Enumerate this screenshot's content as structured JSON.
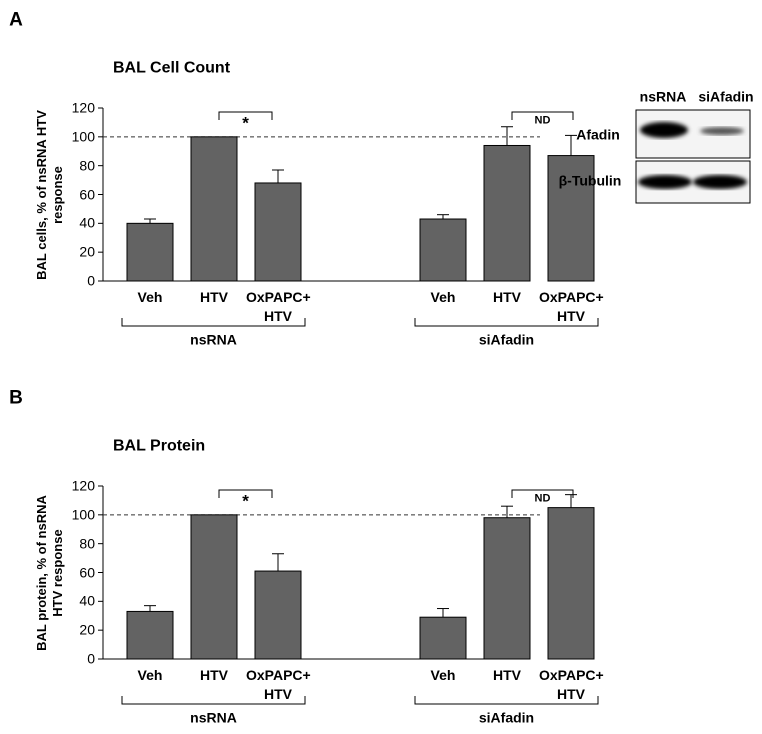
{
  "chart_data": [
    {
      "type": "bar",
      "panel": "A",
      "title": "BAL  Cell Count",
      "y_label": "BAL cells, % of nsRNA HTV response",
      "categories": [
        "Veh",
        "HTV",
        "OxPAPC+ HTV",
        "Veh",
        "HTV",
        "OxPAPC+ HTV"
      ],
      "groups": [
        "nsRNA",
        "siAfadin"
      ],
      "values": [
        40,
        100,
        68,
        43,
        94,
        87
      ],
      "errors": [
        3,
        0,
        9,
        3,
        13,
        14
      ],
      "color": "#636363",
      "ylim": [
        0,
        120
      ],
      "yticks": [
        0,
        20,
        40,
        60,
        80,
        100,
        120
      ],
      "reference_line": 100,
      "annotations": [
        "*",
        "ND"
      ]
    },
    {
      "type": "bar",
      "panel": "B",
      "title": "BAL  Protein",
      "y_label": "BAL protein, % of nsRNA HTV response",
      "categories": [
        "Veh",
        "HTV",
        "OxPAPC+ HTV",
        "Veh",
        "HTV",
        "OxPAPC+ HTV"
      ],
      "groups": [
        "nsRNA",
        "siAfadin"
      ],
      "values": [
        33,
        100,
        61,
        29,
        98,
        105
      ],
      "errors": [
        4,
        0,
        12,
        6,
        8,
        9
      ],
      "color": "#636363",
      "ylim": [
        0,
        120
      ],
      "yticks": [
        0,
        20,
        40,
        60,
        80,
        100,
        120
      ],
      "reference_line": 100,
      "annotations": [
        "*",
        "ND"
      ]
    }
  ],
  "blot": {
    "lanes": [
      "nsRNA",
      "siAfadin"
    ],
    "rows": [
      "Afadin",
      "β-Tubulin"
    ]
  }
}
